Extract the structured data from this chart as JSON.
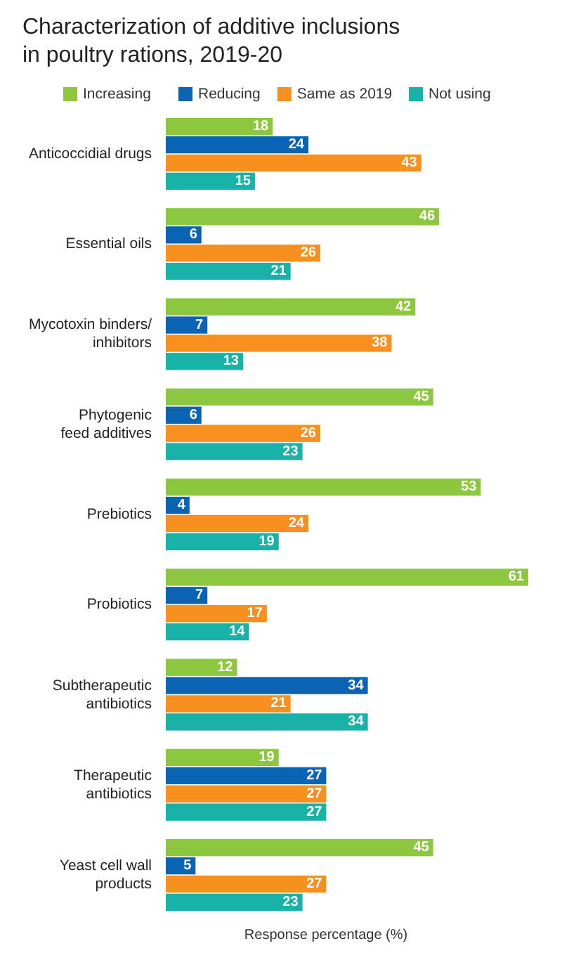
{
  "chart_data": {
    "type": "bar",
    "orientation": "horizontal",
    "title": "Characterization of additive inclusions\nin poultry rations, 2019-20",
    "xlabel": "Response percentage (%)",
    "categories": [
      "Anticoccidial drugs",
      "Essential oils",
      "Mycotoxin binders/\ninhibitors",
      "Phytogenic\nfeed additives",
      "Prebiotics",
      "Probiotics",
      "Subtherapeutic\nantibiotics",
      "Therapeutic\nantibiotics",
      "Yeast cell wall\nproducts"
    ],
    "series": [
      {
        "name": "Increasing",
        "color": "#8dc63f",
        "values": [
          18,
          46,
          42,
          45,
          53,
          61,
          12,
          19,
          45
        ]
      },
      {
        "name": "Reducing",
        "color": "#0b63b3",
        "values": [
          24,
          6,
          7,
          6,
          4,
          7,
          34,
          27,
          5
        ]
      },
      {
        "name": "Same as 2019",
        "color": "#f7901e",
        "values": [
          43,
          26,
          38,
          26,
          24,
          17,
          21,
          27,
          27
        ]
      },
      {
        "name": "Not using",
        "color": "#17b2a8",
        "values": [
          15,
          21,
          13,
          23,
          19,
          14,
          34,
          27,
          23
        ]
      }
    ],
    "tick_labels": "y",
    "legend": "top",
    "data_labels": true
  }
}
